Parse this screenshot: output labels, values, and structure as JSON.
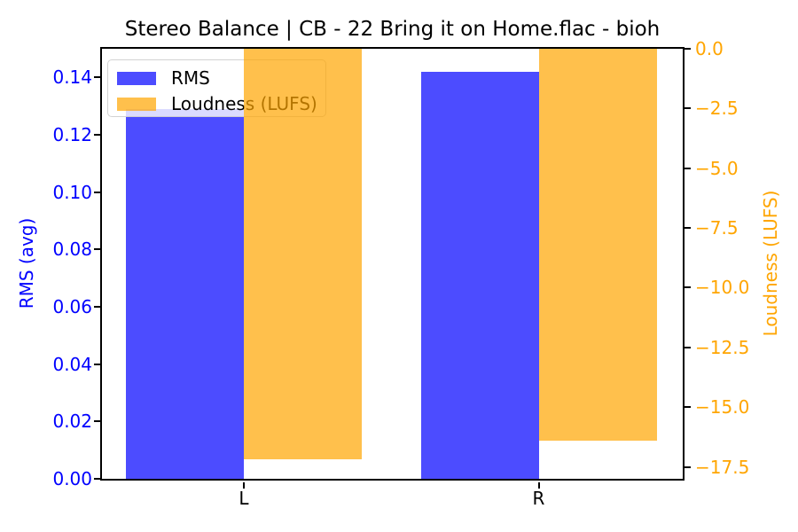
{
  "title": "Stereo Balance | CB - 22 Bring it on Home.flac - bioh",
  "chart_data": {
    "type": "bar",
    "categories": [
      "L",
      "R"
    ],
    "series": [
      {
        "name": "RMS",
        "axis": "left",
        "color": "#0000ff",
        "fill": "rgba(0,0,255,0.7)",
        "values": [
          0.129,
          0.142
        ]
      },
      {
        "name": "Loudness (LUFS)",
        "axis": "right",
        "color": "#ffa500",
        "fill": "rgba(255,165,0,0.7)",
        "values": [
          -17.2,
          -16.4
        ]
      }
    ],
    "left_axis": {
      "label": "RMS (avg)",
      "color": "#0000ff",
      "min": 0,
      "max": 0.15,
      "ticks": [
        {
          "v": 0.0,
          "label": "0.00"
        },
        {
          "v": 0.02,
          "label": "0.02"
        },
        {
          "v": 0.04,
          "label": "0.04"
        },
        {
          "v": 0.06,
          "label": "0.06"
        },
        {
          "v": 0.08,
          "label": "0.08"
        },
        {
          "v": 0.1,
          "label": "0.10"
        },
        {
          "v": 0.12,
          "label": "0.12"
        },
        {
          "v": 0.14,
          "label": "0.14"
        }
      ]
    },
    "right_axis": {
      "label": "Loudness (LUFS)",
      "color": "#ffa500",
      "min": -18,
      "max": 0,
      "ticks": [
        {
          "v": 0.0,
          "label": "0.0"
        },
        {
          "v": -2.5,
          "label": "−2.5"
        },
        {
          "v": -5.0,
          "label": "−5.0"
        },
        {
          "v": -7.5,
          "label": "−7.5"
        },
        {
          "v": -10.0,
          "label": "−10.0"
        },
        {
          "v": -12.5,
          "label": "−12.5"
        },
        {
          "v": -15.0,
          "label": "−15.0"
        },
        {
          "v": -17.5,
          "label": "−17.5"
        }
      ]
    },
    "legend": {
      "position": "upper left",
      "items": [
        {
          "label": "RMS"
        },
        {
          "label": "Loudness (LUFS)"
        }
      ]
    },
    "grid": false
  }
}
